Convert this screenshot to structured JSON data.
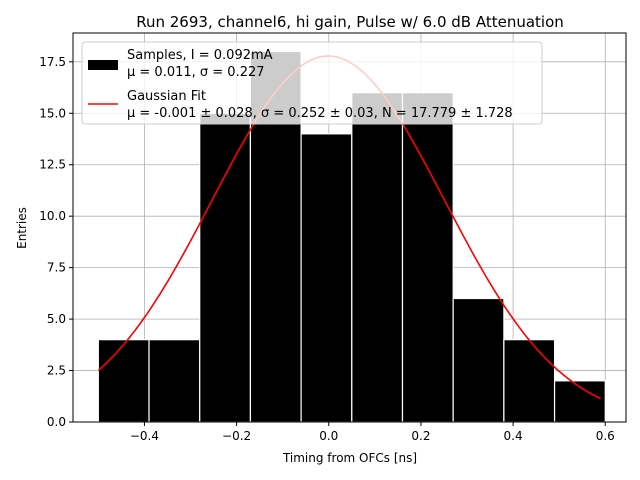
{
  "chart_data": {
    "type": "bar",
    "title": "Run 2693, channel6, hi gain, Pulse w/ 6.0 dB Attenuation",
    "xlabel": "Timing from OFCs [ns]",
    "ylabel": "Entries",
    "xlim": [
      -0.555,
      0.645
    ],
    "ylim": [
      0,
      18.9
    ],
    "xticks": [
      -0.4,
      -0.2,
      0.0,
      0.2,
      0.4,
      0.6
    ],
    "xtick_labels": [
      "−0.4",
      "−0.2",
      "0.0",
      "0.2",
      "0.4",
      "0.6"
    ],
    "yticks": [
      0.0,
      2.5,
      5.0,
      7.5,
      10.0,
      12.5,
      15.0,
      17.5
    ],
    "ytick_labels": [
      "0.0",
      "2.5",
      "5.0",
      "7.5",
      "10.0",
      "12.5",
      "15.0",
      "17.5"
    ],
    "grid": true,
    "legend_position": "top-left",
    "histogram": {
      "bin_edges": [
        -0.5,
        -0.39,
        -0.28,
        -0.17,
        -0.06,
        0.05,
        0.16,
        0.27,
        0.38,
        0.49,
        0.6
      ],
      "counts": [
        4,
        4,
        15,
        18,
        14,
        16,
        16,
        6,
        4,
        2
      ],
      "color": "#000000",
      "edge_color": "#ffffff"
    },
    "fit": {
      "type": "gaussian",
      "mu": -0.001,
      "sigma": 0.252,
      "N": 17.779,
      "x_range": [
        -0.5,
        0.59
      ],
      "color": "#ff0000"
    },
    "legend": {
      "entries": [
        {
          "line1": "Samples, I = 0.092mA",
          "line2": "μ = 0.011, σ = 0.227",
          "kind": "patch",
          "color": "#000000"
        },
        {
          "line1": "Gaussian Fit",
          "line2": "μ = -0.001 ± 0.028, σ = 0.252 ± 0.03, N = 17.779 ± 1.728",
          "kind": "line",
          "color": "#ff0000"
        }
      ]
    }
  }
}
